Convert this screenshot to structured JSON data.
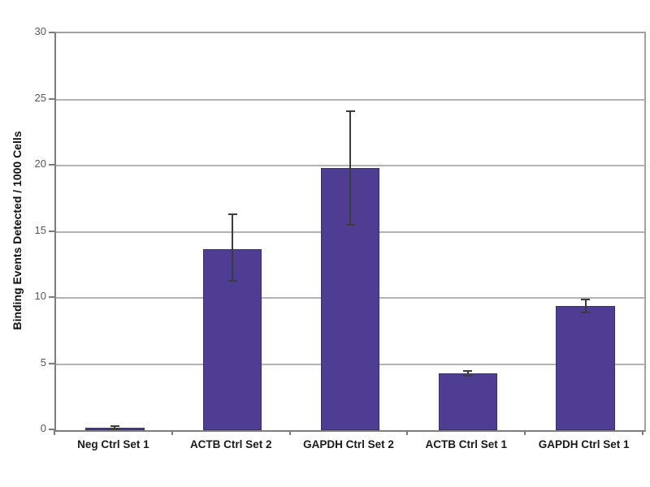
{
  "chart_data": {
    "type": "bar",
    "title": "",
    "xlabel": "",
    "ylabel": "Binding Events Detected / 1000 Cells",
    "ylim": [
      0,
      30
    ],
    "yticks": [
      0,
      5,
      10,
      15,
      20,
      25,
      30
    ],
    "grid": true,
    "legend_position": "none",
    "categories": [
      "Neg Ctrl Set 1",
      "ACTB Ctrl Set 2",
      "GAPDH Ctrl Set 2",
      "ACTB Ctrl Set 1",
      "GAPDH Ctrl Set 1"
    ],
    "series": [
      {
        "name": "Binding Events",
        "values": [
          0.2,
          13.7,
          19.8,
          4.3,
          9.4
        ],
        "error_upper": [
          0.3,
          16.3,
          24.1,
          4.5,
          9.9
        ],
        "error_lower": [
          0.1,
          11.3,
          15.5,
          4.1,
          8.9
        ]
      }
    ],
    "bar_color": "#4e3d92",
    "bar_border_color": "#39306e",
    "error_bar_color": "#3c3c3c",
    "gridline_color": "#b3b3b3",
    "axis_color": "#7d7d7d",
    "frame_color": "#a3a3a3",
    "tick_label_color": "#595959",
    "category_label_color": "#1a1a1a",
    "background_color": "#ffffff"
  }
}
